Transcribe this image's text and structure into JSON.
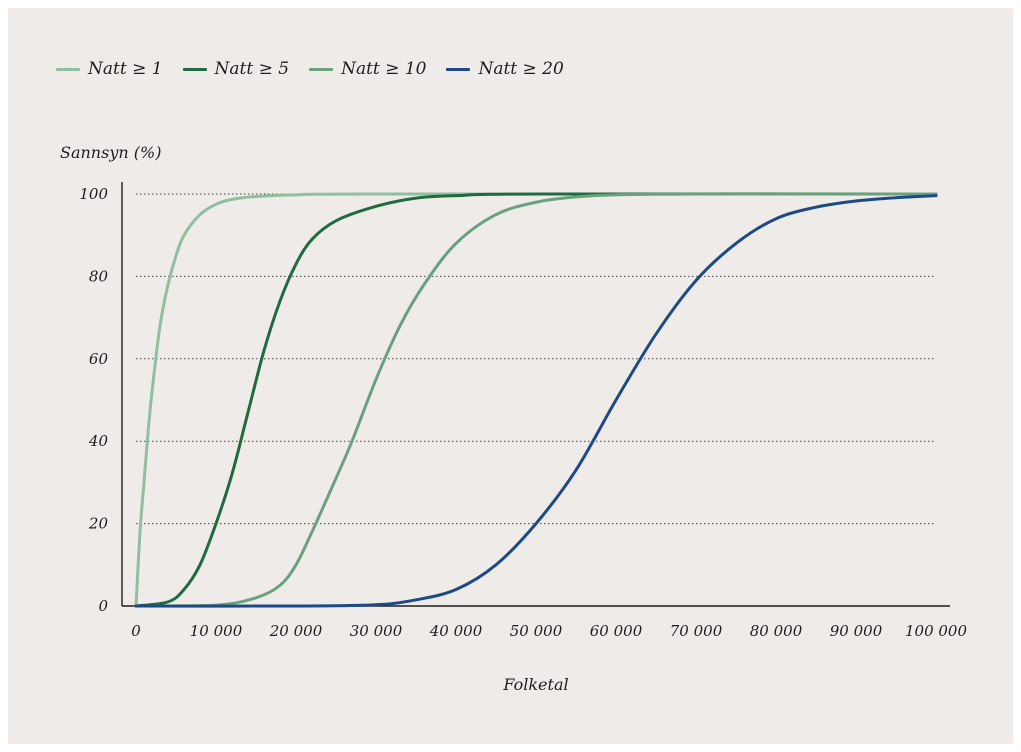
{
  "chart_data": {
    "type": "line",
    "ylabel": "Sannsyn (%)",
    "xlabel": "Folketal",
    "xlim": [
      0,
      100000
    ],
    "ylim": [
      0,
      100
    ],
    "xticks": [
      {
        "value": 0,
        "label": "0"
      },
      {
        "value": 10000,
        "label": "10 000"
      },
      {
        "value": 20000,
        "label": "20 000"
      },
      {
        "value": 30000,
        "label": "30 000"
      },
      {
        "value": 40000,
        "label": "40 000"
      },
      {
        "value": 50000,
        "label": "50 000"
      },
      {
        "value": 60000,
        "label": "60 000"
      },
      {
        "value": 70000,
        "label": "70 000"
      },
      {
        "value": 80000,
        "label": "80 000"
      },
      {
        "value": 90000,
        "label": "90 000"
      },
      {
        "value": 100000,
        "label": "100 000"
      }
    ],
    "yticks": [
      {
        "value": 0,
        "label": "0"
      },
      {
        "value": 20,
        "label": "20"
      },
      {
        "value": 40,
        "label": "40"
      },
      {
        "value": 60,
        "label": "60"
      },
      {
        "value": 80,
        "label": "80"
      },
      {
        "value": 100,
        "label": "100"
      }
    ],
    "grid": "horizontal dotted",
    "legend_position": "top-left",
    "series": [
      {
        "name": "Natt ≥ 1",
        "color": "#8fbf9d",
        "x": [
          0,
          500,
          1000,
          1500,
          2000,
          3000,
          4000,
          5000,
          6000,
          8000,
          10000,
          12000,
          15000,
          20000,
          30000,
          100000
        ],
        "y": [
          0,
          18,
          30,
          42,
          52,
          68,
          78,
          85,
          90,
          95,
          97.5,
          98.7,
          99.4,
          99.8,
          100,
          100
        ]
      },
      {
        "name": "Natt ≥ 5",
        "color": "#1f6b3e",
        "x": [
          0,
          4000,
          6000,
          8000,
          10000,
          12000,
          14000,
          16000,
          18000,
          20000,
          22000,
          25000,
          30000,
          35000,
          40000,
          50000,
          100000
        ],
        "y": [
          0,
          1,
          4,
          10,
          20,
          32,
          47,
          62,
          74,
          83,
          89,
          93.5,
          97,
          99,
          99.6,
          100,
          100
        ]
      },
      {
        "name": "Natt ≥ 10",
        "color": "#6aa17d",
        "x": [
          0,
          10000,
          15000,
          18000,
          20000,
          22000,
          25000,
          27000,
          30000,
          33000,
          36000,
          40000,
          45000,
          50000,
          55000,
          60000,
          70000,
          100000
        ],
        "y": [
          0,
          0.2,
          2,
          5,
          10,
          18,
          31,
          40,
          55,
          68,
          78,
          88,
          95,
          98,
          99.3,
          99.8,
          100,
          100
        ]
      },
      {
        "name": "Natt ≥ 20",
        "color": "#1b4a86",
        "x": [
          0,
          20000,
          30000,
          35000,
          40000,
          45000,
          50000,
          55000,
          60000,
          65000,
          70000,
          75000,
          80000,
          85000,
          90000,
          95000,
          100000
        ],
        "y": [
          0,
          0,
          0.3,
          1.5,
          4,
          10,
          20,
          33,
          50,
          66,
          79,
          88,
          94,
          96.8,
          98.3,
          99.1,
          99.6
        ]
      }
    ]
  }
}
